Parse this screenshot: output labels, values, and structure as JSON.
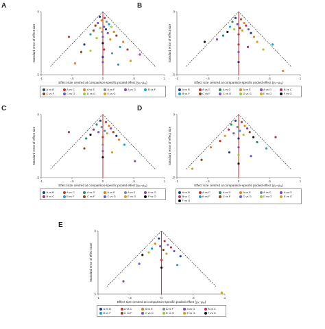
{
  "comparison_colors": {
    "A vs B": "#1f3a8a",
    "A vs C": "#c0392b",
    "A vs D": "#2e8b57",
    "A vs E": "#e67e22",
    "A vs F": "#7f8c8d",
    "A vs G": "#8e44ad",
    "B vs C": "#b03060",
    "B vs F": "#1a9fd0",
    "C vs F": "#8b4513",
    "C vs G": "#6a5acd",
    "D vs G": "#9acd32",
    "E vs G": "#d4a017",
    "F vs G": "#111111"
  },
  "chart_data": [
    {
      "panel": "A",
      "type": "scatter",
      "xlabel": "Effect size centred at comparison-specific pooled effect (yᵢₓ−μₓᵧ)",
      "ylabel": "Standard error of effect size",
      "xlim": [
        -1,
        1
      ],
      "ylim": [
        0,
        0.5
      ],
      "xticks": [
        "-1",
        "-.5",
        "0",
        ".5",
        "1"
      ],
      "yticks": [
        "0",
        ".5"
      ],
      "legend": [
        "A vs B",
        "A vs C",
        "A vs E",
        "A vs F",
        "A vs G",
        "B vs F",
        "C vs F",
        "C vs G",
        "D vs G",
        "E vs G"
      ],
      "points": [
        {
          "x": -0.05,
          "y": 0.04,
          "c": "A vs B"
        },
        {
          "x": 0.03,
          "y": 0.05,
          "c": "A vs C"
        },
        {
          "x": -0.02,
          "y": 0.07,
          "c": "A vs E"
        },
        {
          "x": 0.06,
          "y": 0.08,
          "c": "A vs F"
        },
        {
          "x": -0.08,
          "y": 0.09,
          "c": "A vs G"
        },
        {
          "x": 0.1,
          "y": 0.1,
          "c": "B vs F"
        },
        {
          "x": -0.12,
          "y": 0.11,
          "c": "C vs F"
        },
        {
          "x": 0.02,
          "y": 0.12,
          "c": "C vs G"
        },
        {
          "x": 0.14,
          "y": 0.12,
          "c": "D vs G"
        },
        {
          "x": -0.04,
          "y": 0.13,
          "c": "E vs G"
        },
        {
          "x": 0.05,
          "y": 0.14,
          "c": "A vs B"
        },
        {
          "x": -0.15,
          "y": 0.15,
          "c": "A vs C"
        },
        {
          "x": 0.18,
          "y": 0.16,
          "c": "A vs E"
        },
        {
          "x": -0.01,
          "y": 0.16,
          "c": "A vs F"
        },
        {
          "x": 0.08,
          "y": 0.17,
          "c": "A vs G"
        },
        {
          "x": -0.2,
          "y": 0.18,
          "c": "B vs F"
        },
        {
          "x": 0.22,
          "y": 0.19,
          "c": "C vs F"
        },
        {
          "x": 0.0,
          "y": 0.2,
          "c": "C vs G"
        },
        {
          "x": -0.1,
          "y": 0.21,
          "c": "D vs G"
        },
        {
          "x": 0.12,
          "y": 0.22,
          "c": "E vs G"
        },
        {
          "x": -0.55,
          "y": 0.2,
          "c": "A vs C"
        },
        {
          "x": 0.33,
          "y": 0.24,
          "c": "A vs E"
        },
        {
          "x": -0.3,
          "y": 0.26,
          "c": "A vs B"
        },
        {
          "x": 0.28,
          "y": 0.28,
          "c": "B vs F"
        },
        {
          "x": 0.0,
          "y": 0.25,
          "c": "F vs G"
        },
        {
          "x": 0.02,
          "y": 0.3,
          "c": "A vs C"
        },
        {
          "x": -0.2,
          "y": 0.31,
          "c": "D vs G"
        },
        {
          "x": 0.15,
          "y": 0.33,
          "c": "A vs F"
        },
        {
          "x": 0.0,
          "y": 0.36,
          "c": "A vs B"
        },
        {
          "x": 0.0,
          "y": 0.4,
          "c": "C vs G"
        },
        {
          "x": 0.45,
          "y": 0.39,
          "c": "E vs G"
        },
        {
          "x": -0.35,
          "y": 0.32,
          "c": "C vs F"
        },
        {
          "x": 0.6,
          "y": 0.34,
          "c": "A vs G"
        },
        {
          "x": 0.4,
          "y": 0.3,
          "c": "A vs C"
        },
        {
          "x": -0.45,
          "y": 0.41,
          "c": "A vs E"
        },
        {
          "x": 0.25,
          "y": 0.42,
          "c": "B vs F"
        }
      ]
    },
    {
      "panel": "B",
      "type": "scatter",
      "xlabel": "Effect size centred at comparison-specific pooled effect (yᵢₓ−μₓᵧ)",
      "ylabel": "Standard error of effect size",
      "xlim": [
        -1,
        1
      ],
      "ylim": [
        0,
        0.5
      ],
      "xticks": [
        "-1",
        "-.5",
        "0",
        ".5",
        "1"
      ],
      "yticks": [
        "0",
        ".5"
      ],
      "legend": [
        "A vs B",
        "A vs C",
        "A vs D",
        "A vs E",
        "A vs G",
        "B vs C",
        "B vs F",
        "C vs F",
        "C vs G",
        "D vs G",
        "E vs G",
        "F vs G"
      ],
      "points": [
        {
          "x": -0.05,
          "y": 0.05,
          "c": "A vs B"
        },
        {
          "x": 0.04,
          "y": 0.06,
          "c": "A vs C"
        },
        {
          "x": -0.1,
          "y": 0.08,
          "c": "A vs D"
        },
        {
          "x": 0.09,
          "y": 0.09,
          "c": "A vs E"
        },
        {
          "x": -0.02,
          "y": 0.1,
          "c": "A vs G"
        },
        {
          "x": 0.12,
          "y": 0.11,
          "c": "B vs C"
        },
        {
          "x": -0.14,
          "y": 0.12,
          "c": "B vs F"
        },
        {
          "x": 0.02,
          "y": 0.13,
          "c": "C vs F"
        },
        {
          "x": 0.16,
          "y": 0.14,
          "c": "C vs G"
        },
        {
          "x": -0.07,
          "y": 0.14,
          "c": "D vs G"
        },
        {
          "x": 0.06,
          "y": 0.15,
          "c": "E vs G"
        },
        {
          "x": -0.18,
          "y": 0.16,
          "c": "F vs G"
        },
        {
          "x": 0.2,
          "y": 0.17,
          "c": "A vs B"
        },
        {
          "x": 0.0,
          "y": 0.18,
          "c": "A vs C"
        },
        {
          "x": -0.25,
          "y": 0.19,
          "c": "A vs D"
        },
        {
          "x": 0.25,
          "y": 0.2,
          "c": "A vs E"
        },
        {
          "x": -0.55,
          "y": 0.24,
          "c": "F vs G"
        },
        {
          "x": 0.55,
          "y": 0.26,
          "c": "B vs F"
        },
        {
          "x": 0.0,
          "y": 0.26,
          "c": "A vs C"
        },
        {
          "x": 0.0,
          "y": 0.32,
          "c": "C vs G"
        },
        {
          "x": 0.0,
          "y": 0.4,
          "c": "A vs B"
        },
        {
          "x": 0.4,
          "y": 0.3,
          "c": "D vs G"
        },
        {
          "x": 0.72,
          "y": 0.47,
          "c": "A vs E"
        },
        {
          "x": -0.35,
          "y": 0.22,
          "c": "A vs G"
        },
        {
          "x": 0.3,
          "y": 0.24,
          "c": "E vs G"
        },
        {
          "x": 0.15,
          "y": 0.28,
          "c": "B vs C"
        }
      ]
    },
    {
      "panel": "C",
      "type": "scatter",
      "xlabel": "Effect size centred at comparison-specific pooled effect (yᵢₓ−μₓᵧ)",
      "ylabel": "Standard error of effect size",
      "xlim": [
        -1,
        1
      ],
      "ylim": [
        0,
        0.5
      ],
      "xticks": [
        "-1",
        "-.5",
        "0",
        ".5",
        "1"
      ],
      "yticks": [
        "0",
        ".5"
      ],
      "legend": [
        "A vs B",
        "A vs C",
        "A vs D",
        "A vs E",
        "A vs F",
        "A vs G",
        "B vs C",
        "B vs F",
        "C vs F",
        "C vs G",
        "E vs G",
        "F vs G"
      ],
      "points": [
        {
          "x": -0.04,
          "y": 0.05,
          "c": "A vs B"
        },
        {
          "x": 0.05,
          "y": 0.06,
          "c": "A vs C"
        },
        {
          "x": -0.1,
          "y": 0.08,
          "c": "A vs D"
        },
        {
          "x": 0.1,
          "y": 0.09,
          "c": "A vs E"
        },
        {
          "x": -0.02,
          "y": 0.1,
          "c": "A vs F"
        },
        {
          "x": 0.13,
          "y": 0.11,
          "c": "A vs G"
        },
        {
          "x": -0.15,
          "y": 0.12,
          "c": "B vs C"
        },
        {
          "x": 0.03,
          "y": 0.13,
          "c": "B vs F"
        },
        {
          "x": 0.17,
          "y": 0.14,
          "c": "C vs F"
        },
        {
          "x": -0.07,
          "y": 0.14,
          "c": "C vs G"
        },
        {
          "x": 0.07,
          "y": 0.15,
          "c": "E vs G"
        },
        {
          "x": -0.2,
          "y": 0.16,
          "c": "F vs G"
        },
        {
          "x": 0.22,
          "y": 0.17,
          "c": "A vs B"
        },
        {
          "x": 0.0,
          "y": 0.18,
          "c": "A vs C"
        },
        {
          "x": -0.27,
          "y": 0.19,
          "c": "A vs D"
        },
        {
          "x": 0.26,
          "y": 0.2,
          "c": "A vs E"
        },
        {
          "x": -0.55,
          "y": 0.14,
          "c": "B vs C"
        },
        {
          "x": 0.0,
          "y": 0.24,
          "c": "A vs F"
        },
        {
          "x": 0.0,
          "y": 0.29,
          "c": "C vs G"
        },
        {
          "x": 0.0,
          "y": 0.34,
          "c": "F vs G"
        },
        {
          "x": 0.52,
          "y": 0.37,
          "c": "A vs G"
        },
        {
          "x": 0.35,
          "y": 0.24,
          "c": "B vs F"
        },
        {
          "x": -0.3,
          "y": 0.27,
          "c": "C vs F"
        },
        {
          "x": 0.15,
          "y": 0.3,
          "c": "E vs G"
        }
      ]
    },
    {
      "panel": "D",
      "type": "scatter",
      "xlabel": "Effect size centred at comparison-specific pooled effect (yᵢₓ−μₓᵧ)",
      "ylabel": "Standard error of effect size",
      "xlim": [
        -1,
        1
      ],
      "ylim": [
        0,
        0.5
      ],
      "xticks": [
        "-1",
        "-.5",
        "0",
        ".5",
        "1"
      ],
      "yticks": [
        "0",
        ".5"
      ],
      "legend": [
        "A vs B",
        "A vs C",
        "A vs D",
        "A vs E",
        "A vs F",
        "A vs G",
        "B vs C",
        "B vs F",
        "C vs F",
        "C vs G",
        "D vs G",
        "E vs G",
        "F vs G"
      ],
      "points": [
        {
          "x": -0.05,
          "y": 0.05,
          "c": "A vs B"
        },
        {
          "x": 0.05,
          "y": 0.06,
          "c": "A vs C"
        },
        {
          "x": -0.12,
          "y": 0.08,
          "c": "A vs D"
        },
        {
          "x": 0.1,
          "y": 0.09,
          "c": "A vs E"
        },
        {
          "x": -0.02,
          "y": 0.1,
          "c": "A vs F"
        },
        {
          "x": 0.14,
          "y": 0.11,
          "c": "A vs G"
        },
        {
          "x": -0.16,
          "y": 0.12,
          "c": "B vs C"
        },
        {
          "x": 0.02,
          "y": 0.13,
          "c": "B vs F"
        },
        {
          "x": 0.18,
          "y": 0.14,
          "c": "C vs F"
        },
        {
          "x": -0.08,
          "y": 0.15,
          "c": "C vs G"
        },
        {
          "x": 0.08,
          "y": 0.16,
          "c": "D vs G"
        },
        {
          "x": -0.22,
          "y": 0.17,
          "c": "E vs G"
        },
        {
          "x": 0.24,
          "y": 0.18,
          "c": "F vs G"
        },
        {
          "x": 0.0,
          "y": 0.19,
          "c": "A vs B"
        },
        {
          "x": -0.3,
          "y": 0.21,
          "c": "A vs C"
        },
        {
          "x": 0.3,
          "y": 0.22,
          "c": "A vs D"
        },
        {
          "x": -0.45,
          "y": 0.26,
          "c": "A vs E"
        },
        {
          "x": 0.45,
          "y": 0.27,
          "c": "B vs F"
        },
        {
          "x": 0.0,
          "y": 0.26,
          "c": "A vs G"
        },
        {
          "x": 0.0,
          "y": 0.32,
          "c": "D vs G"
        },
        {
          "x": 0.0,
          "y": 0.39,
          "c": "F vs G"
        },
        {
          "x": -0.6,
          "y": 0.36,
          "c": "C vs F"
        },
        {
          "x": 0.6,
          "y": 0.18,
          "c": "B vs C"
        },
        {
          "x": -0.15,
          "y": 0.3,
          "c": "A vs B"
        },
        {
          "x": 0.2,
          "y": 0.33,
          "c": "C vs G"
        },
        {
          "x": -0.75,
          "y": 0.43,
          "c": "E vs G"
        }
      ]
    },
    {
      "panel": "E",
      "type": "scatter",
      "xlabel": "Effect size centred at comparison-specific pooled effect (yᵢₓ−μₓᵧ)",
      "ylabel": "Standard error of effect size",
      "xlim": [
        -1,
        1
      ],
      "ylim": [
        0,
        0.5
      ],
      "xticks": [
        "-1",
        "-.5",
        "0",
        ".5",
        "1"
      ],
      "yticks": [
        "0",
        ".5"
      ],
      "legend": [
        "A vs B",
        "A vs C",
        "A vs E",
        "A vs F",
        "A vs G",
        "B vs C",
        "B vs F",
        "C vs F",
        "C vs G",
        "D vs G",
        "E vs G",
        "F vs G"
      ],
      "points": [
        {
          "x": -0.04,
          "y": 0.06,
          "c": "A vs B"
        },
        {
          "x": 0.05,
          "y": 0.08,
          "c": "A vs C"
        },
        {
          "x": -0.1,
          "y": 0.1,
          "c": "A vs E"
        },
        {
          "x": 0.1,
          "y": 0.11,
          "c": "A vs F"
        },
        {
          "x": -0.02,
          "y": 0.12,
          "c": "A vs G"
        },
        {
          "x": 0.15,
          "y": 0.13,
          "c": "B vs C"
        },
        {
          "x": -0.15,
          "y": 0.14,
          "c": "B vs F"
        },
        {
          "x": 0.03,
          "y": 0.15,
          "c": "C vs F"
        },
        {
          "x": 0.2,
          "y": 0.16,
          "c": "C vs G"
        },
        {
          "x": -0.2,
          "y": 0.17,
          "c": "D vs G"
        },
        {
          "x": 0.08,
          "y": 0.18,
          "c": "E vs G"
        },
        {
          "x": -0.3,
          "y": 0.19,
          "c": "F vs G"
        },
        {
          "x": 0.3,
          "y": 0.2,
          "c": "A vs B"
        },
        {
          "x": 0.0,
          "y": 0.23,
          "c": "A vs C"
        },
        {
          "x": -0.6,
          "y": 0.4,
          "c": "A vs G"
        },
        {
          "x": 0.0,
          "y": 0.29,
          "c": "F vs G"
        },
        {
          "x": 0.95,
          "y": 0.49,
          "c": "E vs G"
        },
        {
          "x": -0.35,
          "y": 0.26,
          "c": "C vs G"
        },
        {
          "x": 0.25,
          "y": 0.27,
          "c": "B vs F"
        }
      ]
    }
  ]
}
